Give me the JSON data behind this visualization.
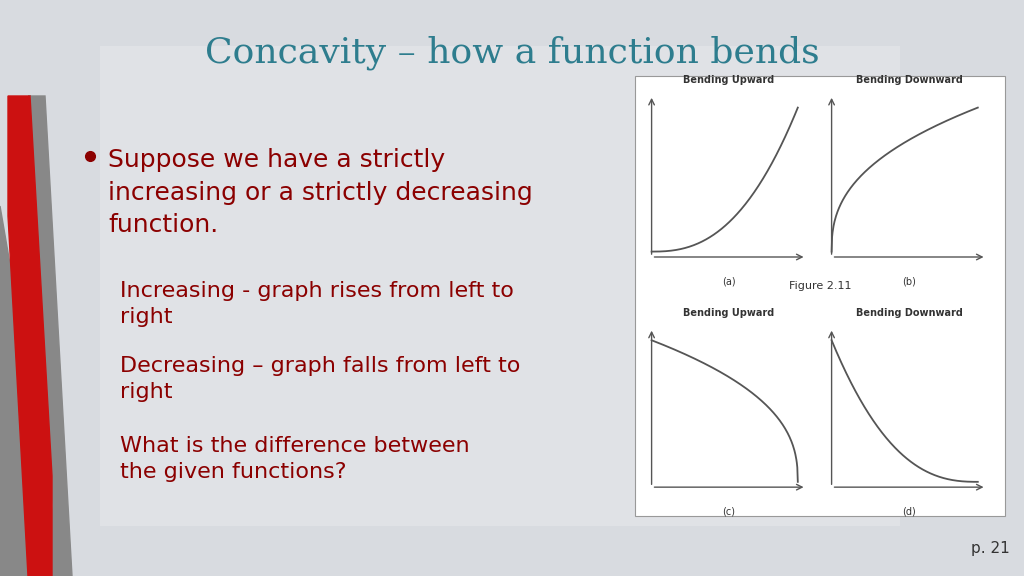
{
  "title": "Concavity – how a function bends",
  "title_color": "#2e7d8e",
  "title_fontsize": 26,
  "bg_color": "#d8dbe0",
  "bullet_text": "Suppose we have a strictly\nincreasing or a strictly decreasing\nfunction.",
  "sub_bullets": [
    "Increasing - graph rises from left to\nright",
    "Decreasing – graph falls from left to\nright",
    "What is the difference between\nthe given functions?"
  ],
  "bullet_color": "#8b0000",
  "sub_bullet_color": "#8b0000",
  "bullet_fontsize": 18,
  "sub_bullet_fontsize": 16,
  "page_number": "p. 21",
  "figure_caption": "Figure 2.11",
  "panel_labels": [
    "(a)",
    "(b)",
    "(c)",
    "(d)"
  ],
  "panel_titles_top": [
    "Bending Upward",
    "Bending Downward"
  ],
  "panel_titles_bottom": [
    "Bending Upward",
    "Bending Downward"
  ],
  "red_bar_color": "#cc1111",
  "gray_bar_color": "#888888"
}
